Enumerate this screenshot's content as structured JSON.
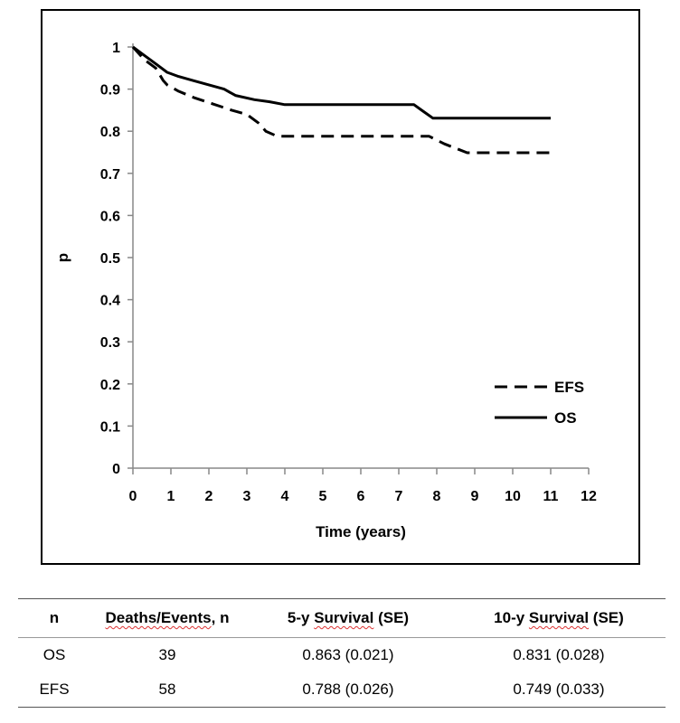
{
  "chart_data": {
    "type": "line",
    "title": "",
    "xlabel": "Time (years)",
    "ylabel": "p",
    "xlim": [
      0,
      12
    ],
    "ylim": [
      0,
      1
    ],
    "x_ticks": [
      "0",
      "1",
      "2",
      "3",
      "4",
      "5",
      "6",
      "7",
      "8",
      "9",
      "10",
      "11",
      "12"
    ],
    "y_ticks": [
      "0",
      "0.1",
      "0.2",
      "0.3",
      "0.4",
      "0.5",
      "0.6",
      "0.7",
      "0.8",
      "0.9",
      "1"
    ],
    "legend_position": "bottom-right",
    "grid": false,
    "series": [
      {
        "name": "EFS",
        "style": "dashed",
        "color": "#000000",
        "points": [
          [
            0,
            1.0
          ],
          [
            0.3,
            0.97
          ],
          [
            0.6,
            0.95
          ],
          [
            0.8,
            0.92
          ],
          [
            0.9,
            0.91
          ],
          [
            1.2,
            0.895
          ],
          [
            1.6,
            0.88
          ],
          [
            2.1,
            0.865
          ],
          [
            2.6,
            0.85
          ],
          [
            3.0,
            0.84
          ],
          [
            3.3,
            0.82
          ],
          [
            3.5,
            0.8
          ],
          [
            3.8,
            0.788
          ],
          [
            7.8,
            0.788
          ],
          [
            8.2,
            0.77
          ],
          [
            8.8,
            0.749
          ],
          [
            11.0,
            0.749
          ]
        ]
      },
      {
        "name": "OS",
        "style": "solid",
        "color": "#000000",
        "points": [
          [
            0,
            1.0
          ],
          [
            0.3,
            0.98
          ],
          [
            0.6,
            0.96
          ],
          [
            0.9,
            0.94
          ],
          [
            1.2,
            0.93
          ],
          [
            1.6,
            0.92
          ],
          [
            2.0,
            0.91
          ],
          [
            2.4,
            0.9
          ],
          [
            2.7,
            0.885
          ],
          [
            3.2,
            0.875
          ],
          [
            3.6,
            0.87
          ],
          [
            4.0,
            0.863
          ],
          [
            7.4,
            0.863
          ],
          [
            7.6,
            0.85
          ],
          [
            7.9,
            0.831
          ],
          [
            11.0,
            0.831
          ]
        ]
      }
    ]
  },
  "table": {
    "headers": [
      "n",
      "Deaths/Events, n",
      "5-y Survival (SE)",
      "10-y Survival (SE)"
    ],
    "header_parts": {
      "deaths_a": "Deaths/Events",
      "deaths_b": ", n",
      "surv5_a": "5-y ",
      "surv5_b": "Survival",
      "surv5_c": " (SE)",
      "surv10_a": "10-y ",
      "surv10_b": "Survival",
      "surv10_c": " (SE)"
    },
    "rows": [
      [
        "OS",
        "39",
        "0.863 (0.021)",
        "0.831 (0.028)"
      ],
      [
        "EFS",
        "58",
        "0.788 (0.026)",
        "0.749 (0.033)"
      ]
    ]
  }
}
